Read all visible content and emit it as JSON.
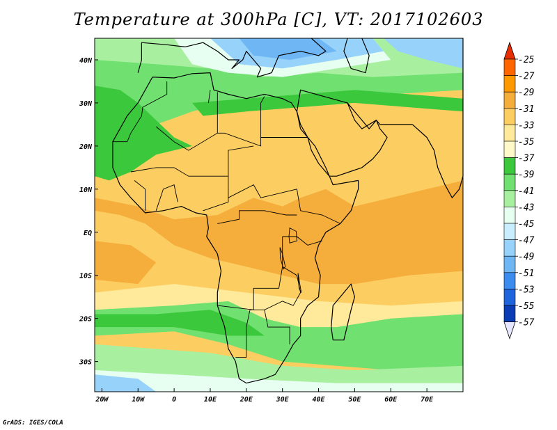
{
  "title": "Temperature at 300hPa [C], VT: 2017102603",
  "credit": "GrADS: IGES/COLA",
  "axes": {
    "lon_range": [
      -22,
      80
    ],
    "lat_range": [
      -37,
      45
    ],
    "lon_ticks": [
      {
        "value": -20,
        "label": "20W"
      },
      {
        "value": -10,
        "label": "10W"
      },
      {
        "value": 0,
        "label": "0"
      },
      {
        "value": 10,
        "label": "10E"
      },
      {
        "value": 20,
        "label": "20E"
      },
      {
        "value": 30,
        "label": "30E"
      },
      {
        "value": 40,
        "label": "40E"
      },
      {
        "value": 50,
        "label": "50E"
      },
      {
        "value": 60,
        "label": "60E"
      },
      {
        "value": 70,
        "label": "70E"
      }
    ],
    "lat_ticks": [
      {
        "value": 40,
        "label": "40N"
      },
      {
        "value": 30,
        "label": "30N"
      },
      {
        "value": 20,
        "label": "20N"
      },
      {
        "value": 10,
        "label": "10N"
      },
      {
        "value": 0,
        "label": "EQ"
      },
      {
        "value": -10,
        "label": "10S"
      },
      {
        "value": -20,
        "label": "20S"
      },
      {
        "value": -30,
        "label": "30S"
      }
    ]
  },
  "colorbar": {
    "labels": [
      "-25",
      "-27",
      "-29",
      "-31",
      "-33",
      "-35",
      "-37",
      "-39",
      "-41",
      "-43",
      "-45",
      "-47",
      "-49",
      "-51",
      "-53",
      "-55",
      "-57"
    ],
    "colors": [
      "#e62e00",
      "#ff6600",
      "#ff9900",
      "#f5ad3b",
      "#fcce62",
      "#ffe99b",
      "#fff8c8",
      "#3cc83c",
      "#70e070",
      "#a8f0a0",
      "#e6fff0",
      "#c8eeff",
      "#96d2fa",
      "#6fb6f5",
      "#3c8cf0",
      "#1e64dc",
      "#0a3cb4",
      "#061a78"
    ]
  },
  "field_colors": {
    "orange": "#f5ad3b",
    "light_orange": "#fcce62",
    "yellow": "#ffe99b",
    "pale_yellow": "#fff8c8",
    "green": "#3cc83c",
    "light_green": "#70e070",
    "pale_green": "#a8f0a0",
    "white_cyan": "#e6fff0",
    "light_blue": "#96d2fa",
    "blue": "#6fb6f5"
  }
}
